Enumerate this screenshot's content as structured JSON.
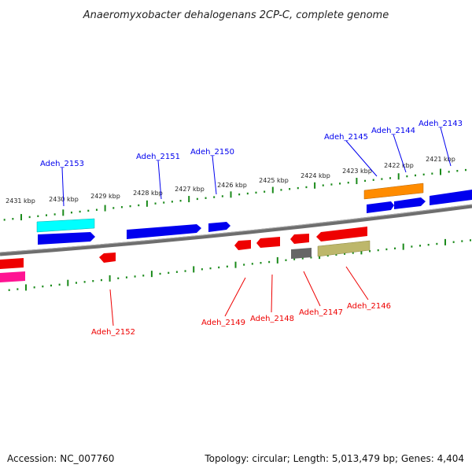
{
  "title": "Anaeromyxobacter dehalogenans 2CP-C, complete genome",
  "footer": {
    "accession": "Accession: NC_007760",
    "summary": "Topology: circular; Length: 5,013,479 bp; Genes: 4,404"
  },
  "kbp_labels": [
    "2431 kbp",
    "2430 kbp",
    "2429 kbp",
    "2428 kbp",
    "2427 kbp",
    "2426 kbp",
    "2425 kbp",
    "2424 kbp",
    "2423 kbp",
    "2422 kbp",
    "2421 kbp"
  ],
  "forward_genes": [
    "Adeh_2153",
    "Adeh_2151",
    "Adeh_2150",
    "Adeh_2145",
    "Adeh_2144",
    "Adeh_2143"
  ],
  "reverse_genes": [
    "Adeh_2152",
    "Adeh_2149",
    "Adeh_2148",
    "Adeh_2147",
    "Adeh_2146"
  ],
  "colors": {
    "forward": "#0000ee",
    "reverse": "#ee0000",
    "tick": "#1a8a1a",
    "backbone": "#777777"
  }
}
